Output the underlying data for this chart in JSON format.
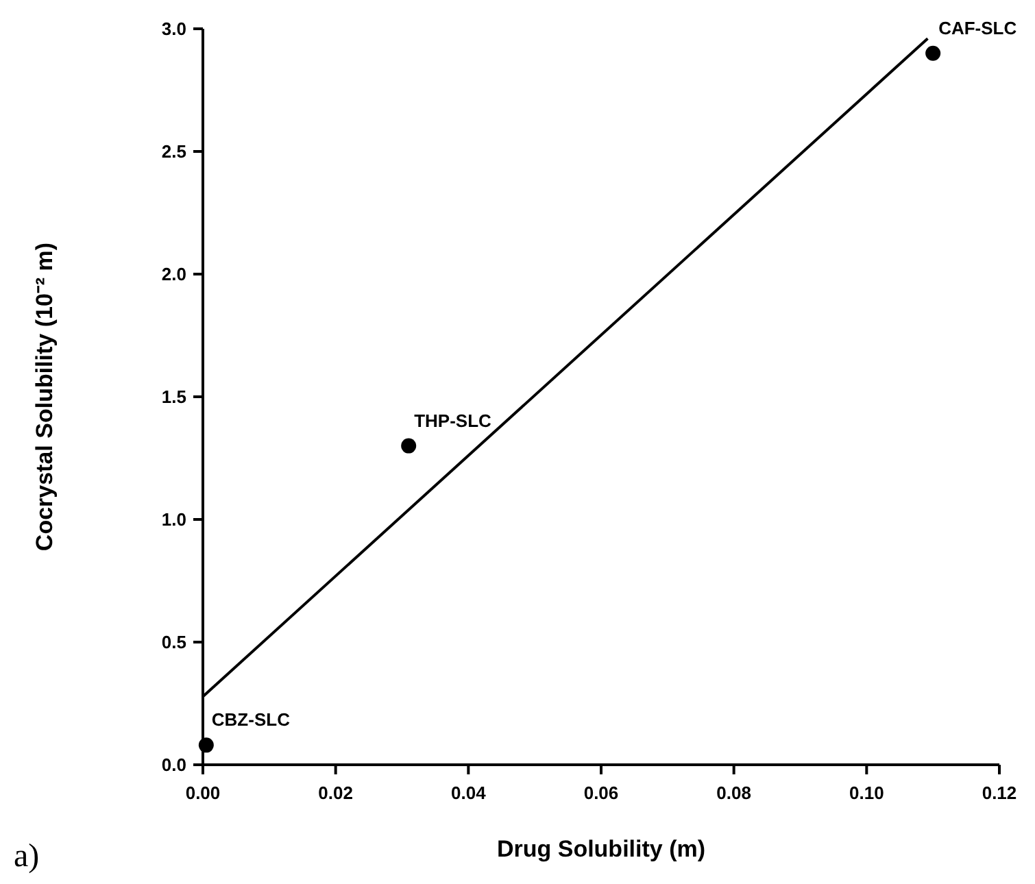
{
  "chart_data": {
    "type": "scatter",
    "xlabel": "Drug Solubility (m)",
    "ylabel": "Cocrystal Solubility (10⁻² m)",
    "series": [
      {
        "color": "#000000",
        "x": [
          0.0005,
          0.031,
          0.11
        ],
        "values": [
          0.08,
          1.3,
          2.9
        ],
        "marker": "circle"
      },
      {
        "type": "line",
        "color": "#000000",
        "x": [
          0,
          0.1092
        ],
        "values": [
          0.278,
          2.96
        ],
        "line_style": "solid",
        "marker": "none"
      }
    ],
    "xlim": [
      0,
      0.12
    ],
    "xticks": [
      {
        "value": 0,
        "label": "0.00"
      },
      0.02,
      0.04,
      0.06,
      0.08,
      {
        "value": 0.1,
        "label": "0.10"
      },
      0.12
    ],
    "ylim": [
      0,
      3.0
    ],
    "yticks": [
      {
        "value": 0,
        "label": "0.0"
      },
      0.5,
      {
        "value": 1,
        "label": "1.0"
      },
      1.5,
      {
        "value": 2,
        "label": "2.0"
      },
      2.5,
      {
        "value": 3,
        "label": "3.0"
      }
    ],
    "annotations": [
      {
        "text": "CBZ-SLC",
        "x": 0.0005,
        "y": 0.08
      },
      {
        "text": "THP-SLC",
        "x": 0.031,
        "y": 1.3
      },
      {
        "text": "CAF-SLC",
        "x": 0.11,
        "y": 2.9
      },
      "a)"
    ],
    "grid": false
  }
}
